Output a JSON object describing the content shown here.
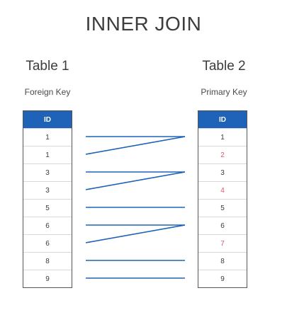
{
  "title": "INNER JOIN",
  "table1": {
    "name": "Table 1",
    "key_label": "Foreign Key",
    "column_header": "ID",
    "rows": [
      "1",
      "1",
      "3",
      "3",
      "5",
      "6",
      "6",
      "8",
      "9"
    ]
  },
  "table2": {
    "name": "Table 2",
    "key_label": "Primary Key",
    "column_header": "ID",
    "rows": [
      "1",
      "2",
      "3",
      "4",
      "5",
      "6",
      "7",
      "8",
      "9"
    ],
    "unmatched": [
      false,
      true,
      false,
      true,
      false,
      false,
      true,
      false,
      false
    ]
  },
  "colors": {
    "header_bg": "#1e63b8",
    "connector": "#1e63b8",
    "unmatched_text": "#e2556f"
  },
  "links": [
    [
      0,
      0
    ],
    [
      1,
      0
    ],
    [
      2,
      2
    ],
    [
      3,
      2
    ],
    [
      4,
      4
    ],
    [
      5,
      5
    ],
    [
      6,
      5
    ],
    [
      7,
      7
    ],
    [
      8,
      8
    ]
  ]
}
